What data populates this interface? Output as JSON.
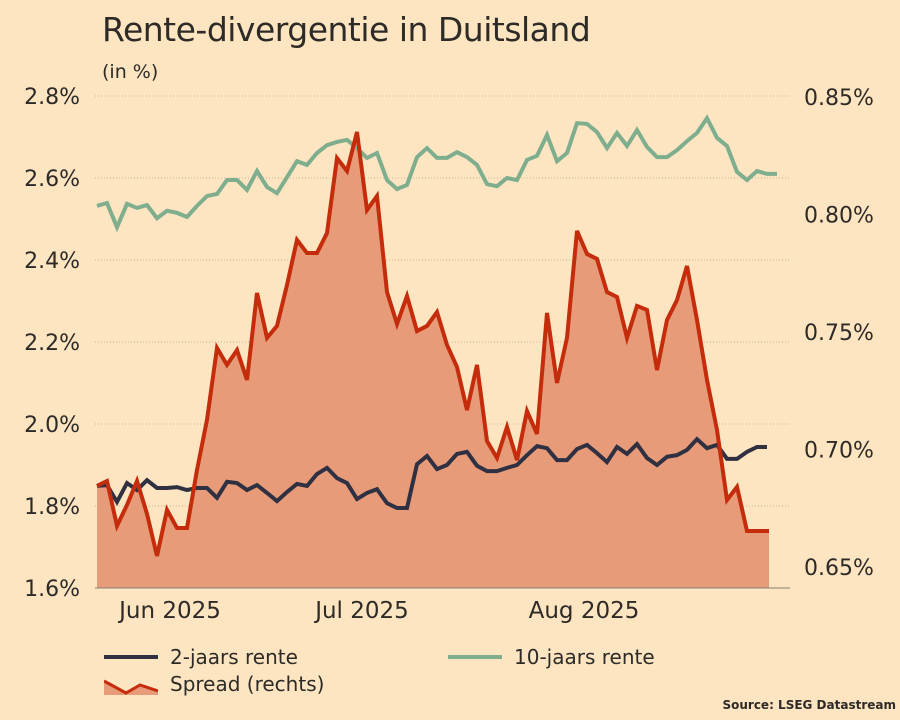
{
  "chart_data": {
    "type": "line",
    "title": "Rente-divergentie in Duitsland",
    "subtitle": "(in %)",
    "source": "Source: LSEG Datastream",
    "x_tick_labels": [
      {
        "label": "Jun 2025",
        "index": 7.3
      },
      {
        "label": "Jul 2025",
        "index": 26.5
      },
      {
        "label": "Aug 2025",
        "index": 48.7
      }
    ],
    "y_left": {
      "range": [
        1.6,
        2.8
      ],
      "ticks": [
        "1.6%",
        "1.8%",
        "2.0%",
        "2.2%",
        "2.4%",
        "2.6%",
        "2.8%"
      ],
      "tick_values": [
        1.6,
        1.8,
        2.0,
        2.2,
        2.4,
        2.6,
        2.8
      ]
    },
    "y_right": {
      "range": [
        0.65,
        0.85
      ],
      "ticks": [
        "0.65%",
        "0.70%",
        "0.75%",
        "0.80%",
        "0.85%"
      ],
      "tick_values": [
        0.65,
        0.7,
        0.75,
        0.8,
        0.85
      ]
    },
    "grid": true,
    "legend_position": "bottom",
    "series": [
      {
        "name": "2-jaars rente",
        "axis": "left",
        "style": "line",
        "color": "#2f3142",
        "values": [
          1.849,
          1.851,
          1.81,
          1.856,
          1.839,
          1.863,
          1.844,
          1.844,
          1.846,
          1.839,
          1.844,
          1.844,
          1.82,
          1.859,
          1.856,
          1.839,
          1.851,
          1.832,
          1.812,
          1.834,
          1.854,
          1.849,
          1.878,
          1.893,
          1.868,
          1.856,
          1.817,
          1.832,
          1.841,
          1.807,
          1.795,
          1.795,
          1.902,
          1.922,
          1.89,
          1.9,
          1.927,
          1.932,
          1.898,
          1.885,
          1.885,
          1.893,
          1.9,
          1.924,
          1.946,
          1.941,
          1.912,
          1.912,
          1.939,
          1.949,
          1.929,
          1.907,
          1.944,
          1.927,
          1.951,
          1.917,
          1.9,
          1.92,
          1.924,
          1.937,
          1.963,
          1.941,
          1.949,
          1.915,
          1.915,
          1.932,
          1.944,
          1.944
        ]
      },
      {
        "name": "10-jaars rente",
        "axis": "left",
        "style": "line",
        "color": "#7fae8f",
        "values": [
          2.532,
          2.539,
          2.48,
          2.537,
          2.527,
          2.534,
          2.502,
          2.52,
          2.515,
          2.505,
          2.532,
          2.556,
          2.561,
          2.595,
          2.595,
          2.571,
          2.617,
          2.578,
          2.563,
          2.602,
          2.641,
          2.632,
          2.661,
          2.68,
          2.688,
          2.693,
          2.673,
          2.649,
          2.661,
          2.595,
          2.573,
          2.583,
          2.651,
          2.673,
          2.649,
          2.649,
          2.663,
          2.651,
          2.632,
          2.585,
          2.58,
          2.6,
          2.595,
          2.644,
          2.654,
          2.705,
          2.641,
          2.661,
          2.734,
          2.732,
          2.712,
          2.673,
          2.71,
          2.678,
          2.717,
          2.676,
          2.651,
          2.651,
          2.668,
          2.69,
          2.71,
          2.746,
          2.698,
          2.678,
          2.615,
          2.595,
          2.617,
          2.61
        ]
      },
      {
        "name": "Spread (rechts)",
        "axis": "right",
        "style": "area",
        "color": "#c42c0c",
        "fill": "#e89b78",
        "values": [
          0.6845,
          0.6866,
          0.6675,
          0.6764,
          0.6866,
          0.6726,
          0.6547,
          0.6743,
          0.6666,
          0.6666,
          0.6913,
          0.7126,
          0.7432,
          0.736,
          0.7423,
          0.7296,
          0.7666,
          0.7475,
          0.7526,
          0.77,
          0.7892,
          0.7836,
          0.7836,
          0.7921,
          0.824,
          0.8185,
          0.8351,
          0.8019,
          0.8079,
          0.767,
          0.7534,
          0.7653,
          0.7504,
          0.7526,
          0.7585,
          0.7445,
          0.7351,
          0.7168,
          0.736,
          0.7036,
          0.6964,
          0.7096,
          0.6955,
          0.7164,
          0.7066,
          0.7581,
          0.7283,
          0.7475,
          0.793,
          0.7832,
          0.7811,
          0.767,
          0.7649,
          0.7475,
          0.7611,
          0.7594,
          0.7338,
          0.7551,
          0.7636,
          0.7781,
          0.7551,
          0.7296,
          0.7083,
          0.6785,
          0.6841,
          0.6653,
          0.6653,
          0.6653
        ]
      }
    ]
  },
  "colors": {
    "background": "#fce5c0",
    "text": "#2d2a28",
    "grid": "#c9b79a"
  }
}
